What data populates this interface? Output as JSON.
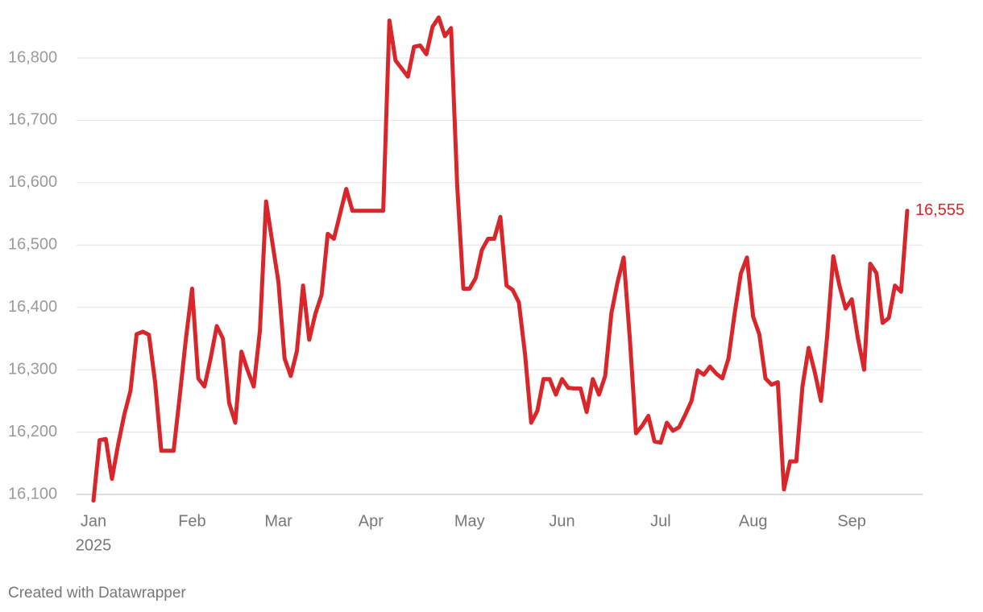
{
  "chart_data": {
    "type": "line",
    "color": "#d8262b",
    "grid": true,
    "categories": [
      "Jan",
      null,
      null,
      null,
      null,
      null,
      null,
      null,
      null,
      null,
      null,
      null,
      null,
      null,
      null,
      null,
      "Feb",
      null,
      null,
      null,
      null,
      null,
      null,
      null,
      null,
      null,
      null,
      null,
      null,
      null,
      "Mar",
      null,
      null,
      null,
      null,
      null,
      null,
      null,
      null,
      null,
      null,
      null,
      null,
      null,
      null,
      "Apr",
      null,
      null,
      null,
      null,
      null,
      null,
      null,
      null,
      null,
      null,
      null,
      null,
      null,
      null,
      null,
      "May",
      null,
      null,
      null,
      null,
      null,
      null,
      null,
      null,
      null,
      null,
      null,
      null,
      null,
      null,
      "Jun",
      null,
      null,
      null,
      null,
      null,
      null,
      null,
      null,
      null,
      null,
      null,
      null,
      null,
      null,
      null,
      "Jul",
      null,
      null,
      null,
      null,
      null,
      null,
      null,
      null,
      null,
      null,
      null,
      null,
      null,
      null,
      "Aug",
      null,
      null,
      null,
      null,
      null,
      null,
      null,
      null,
      null,
      null,
      null,
      null,
      null,
      null,
      null,
      "Sep",
      null,
      null,
      null,
      null,
      null,
      null,
      null,
      null,
      null
    ],
    "category_year": "2025",
    "values": [
      16090,
      16187,
      16189,
      16125,
      16180,
      16228,
      16266,
      16357,
      16361,
      16356,
      16280,
      16170,
      16170,
      16170,
      16258,
      16350,
      16430,
      16286,
      16273,
      16318,
      16370,
      16350,
      16247,
      16215,
      16329,
      16299,
      16273,
      16363,
      16570,
      16505,
      16441,
      16318,
      16290,
      16330,
      16435,
      16348,
      16390,
      16420,
      16518,
      16510,
      16550,
      16590,
      16555,
      16555,
      16555,
      16555,
      16555,
      16555,
      16860,
      16796,
      16783,
      16770,
      16818,
      16820,
      16806,
      16850,
      16865,
      16835,
      16848,
      16595,
      16430,
      16430,
      16447,
      16492,
      16510,
      16510,
      16545,
      16435,
      16428,
      16408,
      16325,
      16215,
      16234,
      16285,
      16285,
      16260,
      16285,
      16271,
      16270,
      16270,
      16232,
      16285,
      16260,
      16290,
      16390,
      16440,
      16480,
      16350,
      16198,
      16210,
      16226,
      16185,
      16183,
      16215,
      16202,
      16208,
      16228,
      16250,
      16299,
      16292,
      16305,
      16294,
      16286,
      16318,
      16390,
      16454,
      16480,
      16385,
      16357,
      16286,
      16276,
      16280,
      16108,
      16153,
      16153,
      16273,
      16335,
      16296,
      16250,
      16353,
      16482,
      16435,
      16398,
      16413,
      16350,
      16300,
      16470,
      16455,
      16375,
      16383,
      16435,
      16425,
      16555
    ],
    "value_labels": [
      null,
      null,
      null,
      null,
      null,
      null,
      null,
      null,
      null,
      null,
      null,
      null,
      null,
      null,
      null,
      null,
      null,
      null,
      null,
      null,
      null,
      null,
      null,
      null,
      null,
      null,
      null,
      null,
      null,
      null,
      null,
      null,
      null,
      null,
      null,
      null,
      null,
      null,
      null,
      null,
      null,
      null,
      null,
      null,
      null,
      null,
      null,
      null,
      null,
      null,
      null,
      null,
      null,
      null,
      null,
      null,
      null,
      null,
      null,
      null,
      null,
      null,
      null,
      null,
      null,
      null,
      null,
      null,
      null,
      null,
      null,
      null,
      null,
      null,
      null,
      null,
      null,
      null,
      null,
      null,
      null,
      null,
      null,
      null,
      null,
      null,
      null,
      null,
      null,
      null,
      null,
      null,
      null,
      null,
      null,
      null,
      null,
      null,
      null,
      null,
      null,
      null,
      null,
      null,
      null,
      null,
      null,
      null,
      null,
      null,
      null,
      null,
      null,
      null,
      null,
      null,
      null,
      null,
      null,
      null,
      null,
      null,
      null,
      null,
      null,
      null,
      null,
      null,
      null,
      null,
      null,
      null,
      "16,555"
    ],
    "ylim": [
      16085,
      16870
    ],
    "yticks": [
      {
        "value": 16100,
        "label": "16,100"
      },
      {
        "value": 16200,
        "label": "16,200"
      },
      {
        "value": 16300,
        "label": "16,300"
      },
      {
        "value": 16400,
        "label": "16,400"
      },
      {
        "value": 16500,
        "label": "16,500"
      },
      {
        "value": 16600,
        "label": "16,600"
      },
      {
        "value": 16700,
        "label": "16,700"
      },
      {
        "value": 16800,
        "label": "16,800"
      }
    ],
    "footer": "Created with Datawrapper"
  }
}
